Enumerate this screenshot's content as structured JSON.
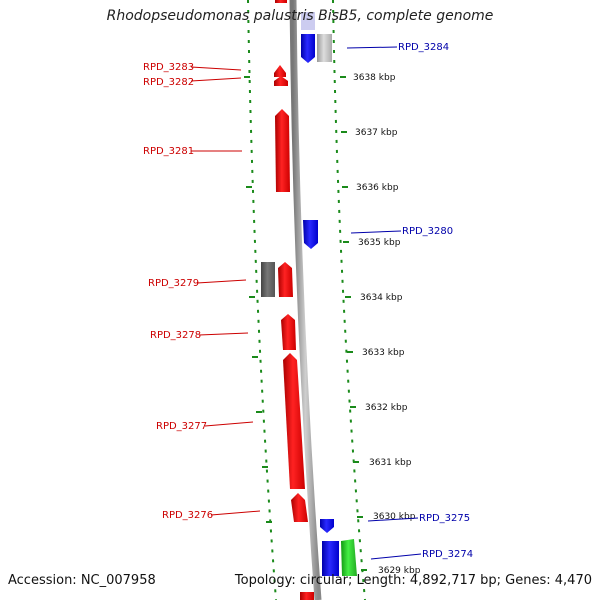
{
  "title": "Rhodopseudomonas palustris BisB5, complete genome",
  "accession": "Accession: NC_007958",
  "topology": "Topology: circular; Length: 4,892,717 bp; Genes: 4,470",
  "colors": {
    "forward_gene": "#ee1111",
    "reverse_gene": "#1010ee",
    "grey_gene": "#666666",
    "light_grey_gene": "#bbbbbb",
    "green_gene": "#22cc22",
    "label_red": "#cc0000",
    "label_blue": "#0000aa",
    "backbone": "#888888",
    "dotted_ring": "#1a8a1a"
  },
  "ticks": [
    "3638 kbp",
    "3637 kbp",
    "3636 kbp",
    "3635 kbp",
    "3634 kbp",
    "3633 kbp",
    "3632 kbp",
    "3631 kbp",
    "3630 kbp",
    "3629 kbp"
  ],
  "left_labels": [
    "RPD_3283",
    "RPD_3282",
    "RPD_3281",
    "RPD_3279",
    "RPD_3278",
    "RPD_3277",
    "RPD_3276"
  ],
  "right_labels": [
    "RPD_3284",
    "RPD_3280",
    "RPD_3275",
    "RPD_3274"
  ]
}
